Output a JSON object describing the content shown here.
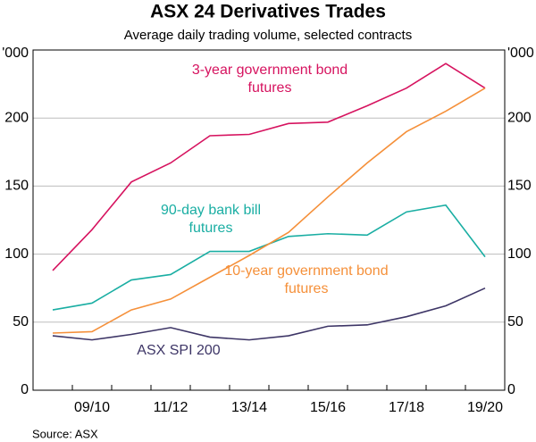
{
  "chart_data": {
    "type": "line",
    "title": "ASX 24 Derivatives Trades",
    "subtitle": "Average daily trading volume, selected contracts",
    "y_unit": "'000",
    "source": "Source:   ASX",
    "categories": [
      null,
      "09/10",
      null,
      "11/12",
      null,
      "13/14",
      null,
      "15/16",
      null,
      "17/18",
      null,
      "19/20"
    ],
    "series": [
      {
        "name": "3-year government bond futures",
        "color": "#d6135f",
        "values": [
          88,
          118,
          153,
          167,
          187,
          188,
          196,
          197,
          209,
          222,
          240,
          222
        ]
      },
      {
        "name": "90-day bank bill futures",
        "color": "#1aaea3",
        "values": [
          59,
          64,
          81,
          85,
          102,
          102,
          113,
          115,
          114,
          131,
          136,
          98
        ]
      },
      {
        "name": "10-year government bond futures",
        "color": "#f5903a",
        "values": [
          42,
          43,
          59,
          67,
          83,
          99,
          116,
          142,
          167,
          190,
          205,
          222
        ]
      },
      {
        "name": "ASX SPI 200",
        "color": "#3d3566",
        "values": [
          40,
          37,
          41,
          46,
          39,
          37,
          40,
          47,
          48,
          54,
          62,
          75
        ]
      }
    ],
    "ylim": [
      0,
      250
    ],
    "yticks": [
      0,
      50,
      100,
      150,
      200
    ],
    "grid": true
  }
}
